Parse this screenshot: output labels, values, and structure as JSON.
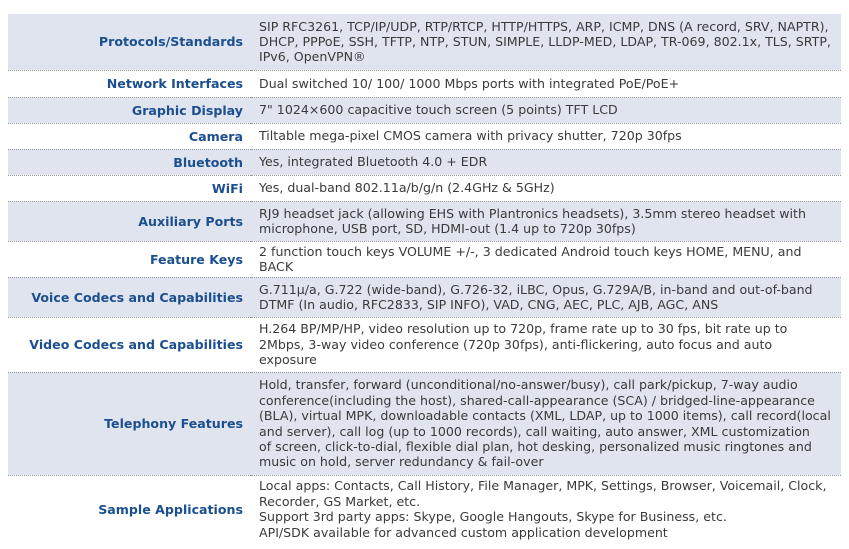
{
  "specs": [
    {
      "label": "Protocols/Standards",
      "lines": [
        "SIP RFC3261, TCP/IP/UDP, RTP/RTCP, HTTP/HTTPS, ARP, ICMP, DNS (A record, SRV, NAPTR),",
        "DHCP, PPPoE, SSH, TFTP, NTP, STUN, SIMPLE, LLDP-MED, LDAP, TR-069, 802.1x, TLS, SRTP,",
        "IPv6, OpenVPN®"
      ]
    },
    {
      "label": "Network Interfaces",
      "lines": [
        "Dual switched 10/ 100/ 1000 Mbps ports with integrated PoE/PoE+"
      ]
    },
    {
      "label": "Graphic Display",
      "lines": [
        "7\" 1024×600 capacitive touch screen (5 points) TFT LCD"
      ]
    },
    {
      "label": "Camera",
      "lines": [
        "Tiltable mega-pixel CMOS camera with privacy shutter, 720p 30fps"
      ]
    },
    {
      "label": "Bluetooth",
      "lines": [
        "Yes, integrated Bluetooth 4.0 + EDR"
      ]
    },
    {
      "label": "WiFi",
      "lines": [
        "Yes, dual-band 802.11a/b/g/n (2.4GHz & 5GHz)"
      ]
    },
    {
      "label": "Auxiliary Ports",
      "lines": [
        "RJ9 headset jack (allowing EHS with Plantronics headsets), 3.5mm stereo headset with",
        "microphone, USB port, SD, HDMI-out (1.4 up to 720p 30fps)"
      ]
    },
    {
      "label": "Feature Keys",
      "lines": [
        "2 function touch keys VOLUME +/-, 3 dedicated Android touch keys HOME, MENU, and",
        "BACK"
      ]
    },
    {
      "label": "Voice Codecs and Capabilities",
      "lines": [
        "G.711μ/a, G.722 (wide-band), G.726-32, iLBC, Opus, G.729A/B, in-band and out-of-band",
        "DTMF (In audio, RFC2833, SIP INFO),  VAD, CNG, AEC, PLC, AJB, AGC, ANS"
      ]
    },
    {
      "label": "Video Codecs and Capabilities",
      "lines": [
        "H.264 BP/MP/HP,  video resolution up to 720p, frame rate up to 30 fps, bit rate up to",
        "2Mbps,  3-way video conference (720p 30fps),  anti-flickering, auto focus and auto",
        "exposure"
      ]
    },
    {
      "label": "Telephony Features",
      "lines": [
        "Hold, transfer, forward (unconditional/no-answer/busy), call park/pickup,  7-way audio",
        "conference(including the host),  shared-call-appearance (SCA) / bridged-line-appearance",
        "(BLA),  virtual MPK,  downloadable contacts (XML, LDAP, up to 1000 items), call record(local",
        "and server), call log (up to 1000 records), call waiting, auto answer,  XML customization",
        "of screen, click-to-dial, flexible dial plan, hot desking,  personalized music ringtones and",
        "music on hold, server redundancy & fail-over"
      ]
    },
    {
      "label": "Sample Applications",
      "lines": [
        "Local apps: Contacts, Call History, File Manager, MPK, Settings, Browser, Voicemail, Clock,",
        "Recorder, GS Market, etc.",
        "Support 3rd party apps: Skype, Google Hangouts, Skype for Business, etc.",
        "API/SDK available for advanced custom application development"
      ]
    }
  ]
}
